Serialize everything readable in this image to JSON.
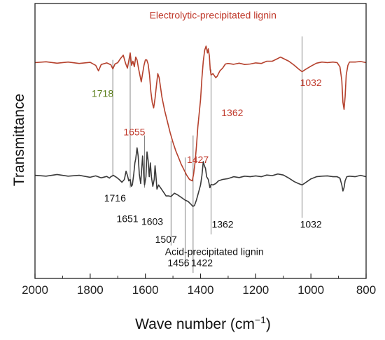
{
  "chart_data": {
    "type": "line",
    "xlabel": "Wave number (cm",
    "xlabel_sup": "−1",
    "xlabel_close": ")",
    "ylabel": "Transmittance",
    "xlim": [
      2000,
      800
    ],
    "x_reversed": true,
    "x_ticks": [
      2000,
      1800,
      1600,
      1400,
      1200,
      1000,
      800
    ],
    "y_ticks_shown": false,
    "grid": false,
    "series": [
      {
        "name": "Electrolytic-precipitated lignin",
        "color": "#b5412d",
        "label_color": "#c0392b",
        "points": [
          [
            2000,
            0.785
          ],
          [
            1960,
            0.788
          ],
          [
            1920,
            0.783
          ],
          [
            1880,
            0.787
          ],
          [
            1840,
            0.782
          ],
          [
            1800,
            0.786
          ],
          [
            1780,
            0.775
          ],
          [
            1770,
            0.755
          ],
          [
            1760,
            0.778
          ],
          [
            1740,
            0.784
          ],
          [
            1725,
            0.777
          ],
          [
            1718,
            0.762
          ],
          [
            1710,
            0.78
          ],
          [
            1700,
            0.785
          ],
          [
            1690,
            0.8
          ],
          [
            1680,
            0.812
          ],
          [
            1672,
            0.783
          ],
          [
            1665,
            0.765
          ],
          [
            1660,
            0.792
          ],
          [
            1655,
            0.82
          ],
          [
            1650,
            0.775
          ],
          [
            1645,
            0.79
          ],
          [
            1640,
            0.77
          ],
          [
            1635,
            0.805
          ],
          [
            1630,
            0.795
          ],
          [
            1625,
            0.765
          ],
          [
            1620,
            0.74
          ],
          [
            1615,
            0.715
          ],
          [
            1610,
            0.745
          ],
          [
            1605,
            0.775
          ],
          [
            1600,
            0.795
          ],
          [
            1595,
            0.795
          ],
          [
            1590,
            0.78
          ],
          [
            1585,
            0.74
          ],
          [
            1580,
            0.68
          ],
          [
            1575,
            0.64
          ],
          [
            1570,
            0.62
          ],
          [
            1565,
            0.655
          ],
          [
            1560,
            0.7
          ],
          [
            1555,
            0.745
          ],
          [
            1550,
            0.73
          ],
          [
            1540,
            0.66
          ],
          [
            1530,
            0.61
          ],
          [
            1520,
            0.57
          ],
          [
            1510,
            0.53
          ],
          [
            1500,
            0.495
          ],
          [
            1490,
            0.465
          ],
          [
            1480,
            0.44
          ],
          [
            1470,
            0.415
          ],
          [
            1460,
            0.395
          ],
          [
            1450,
            0.375
          ],
          [
            1440,
            0.36
          ],
          [
            1430,
            0.355
          ],
          [
            1425,
            0.38
          ],
          [
            1420,
            0.42
          ],
          [
            1415,
            0.48
          ],
          [
            1410,
            0.55
          ],
          [
            1400,
            0.65
          ],
          [
            1395,
            0.73
          ],
          [
            1390,
            0.79
          ],
          [
            1385,
            0.83
          ],
          [
            1380,
            0.845
          ],
          [
            1375,
            0.82
          ],
          [
            1372,
            0.835
          ],
          [
            1368,
            0.81
          ],
          [
            1365,
            0.76
          ],
          [
            1362,
            0.74
          ],
          [
            1355,
            0.745
          ],
          [
            1345,
            0.73
          ],
          [
            1340,
            0.735
          ],
          [
            1330,
            0.755
          ],
          [
            1320,
            0.765
          ],
          [
            1310,
            0.78
          ],
          [
            1300,
            0.782
          ],
          [
            1280,
            0.779
          ],
          [
            1260,
            0.783
          ],
          [
            1240,
            0.778
          ],
          [
            1220,
            0.78
          ],
          [
            1200,
            0.784
          ],
          [
            1180,
            0.782
          ],
          [
            1160,
            0.79
          ],
          [
            1140,
            0.79
          ],
          [
            1120,
            0.8
          ],
          [
            1110,
            0.805
          ],
          [
            1100,
            0.8
          ],
          [
            1080,
            0.79
          ],
          [
            1060,
            0.775
          ],
          [
            1045,
            0.762
          ],
          [
            1032,
            0.752
          ],
          [
            1020,
            0.76
          ],
          [
            1000,
            0.772
          ],
          [
            980,
            0.783
          ],
          [
            960,
            0.787
          ],
          [
            940,
            0.785
          ],
          [
            920,
            0.787
          ],
          [
            905,
            0.785
          ],
          [
            895,
            0.77
          ],
          [
            888,
            0.72
          ],
          [
            884,
            0.64
          ],
          [
            880,
            0.615
          ],
          [
            876,
            0.66
          ],
          [
            872,
            0.74
          ],
          [
            866,
            0.775
          ],
          [
            860,
            0.787
          ],
          [
            840,
            0.787
          ],
          [
            820,
            0.789
          ],
          [
            800,
            0.785
          ]
        ]
      },
      {
        "name": "Acid-precipitated lignin",
        "color": "#3a3a3a",
        "label_color": "#111111",
        "points": [
          [
            2000,
            0.375
          ],
          [
            1960,
            0.372
          ],
          [
            1920,
            0.378
          ],
          [
            1880,
            0.372
          ],
          [
            1840,
            0.375
          ],
          [
            1800,
            0.368
          ],
          [
            1780,
            0.373
          ],
          [
            1760,
            0.366
          ],
          [
            1740,
            0.371
          ],
          [
            1730,
            0.365
          ],
          [
            1725,
            0.37
          ],
          [
            1716,
            0.375
          ],
          [
            1705,
            0.368
          ],
          [
            1695,
            0.36
          ],
          [
            1685,
            0.35
          ],
          [
            1676,
            0.36
          ],
          [
            1670,
            0.39
          ],
          [
            1665,
            0.375
          ],
          [
            1660,
            0.355
          ],
          [
            1655,
            0.36
          ],
          [
            1651,
            0.335
          ],
          [
            1647,
            0.34
          ],
          [
            1642,
            0.38
          ],
          [
            1638,
            0.42
          ],
          [
            1635,
            0.435
          ],
          [
            1630,
            0.475
          ],
          [
            1626,
            0.445
          ],
          [
            1622,
            0.38
          ],
          [
            1617,
            0.345
          ],
          [
            1613,
            0.4
          ],
          [
            1610,
            0.445
          ],
          [
            1605,
            0.365
          ],
          [
            1603,
            0.34
          ],
          [
            1598,
            0.37
          ],
          [
            1594,
            0.46
          ],
          [
            1590,
            0.43
          ],
          [
            1586,
            0.37
          ],
          [
            1582,
            0.42
          ],
          [
            1578,
            0.37
          ],
          [
            1573,
            0.335
          ],
          [
            1568,
            0.36
          ],
          [
            1565,
            0.41
          ],
          [
            1562,
            0.38
          ],
          [
            1558,
            0.325
          ],
          [
            1552,
            0.34
          ],
          [
            1545,
            0.33
          ],
          [
            1535,
            0.315
          ],
          [
            1525,
            0.3
          ],
          [
            1515,
            0.3
          ],
          [
            1507,
            0.298
          ],
          [
            1495,
            0.31
          ],
          [
            1485,
            0.305
          ],
          [
            1470,
            0.295
          ],
          [
            1456,
            0.285
          ],
          [
            1445,
            0.28
          ],
          [
            1435,
            0.27
          ],
          [
            1428,
            0.262
          ],
          [
            1422,
            0.265
          ],
          [
            1415,
            0.285
          ],
          [
            1408,
            0.31
          ],
          [
            1400,
            0.34
          ],
          [
            1395,
            0.375
          ],
          [
            1390,
            0.425
          ],
          [
            1386,
            0.41
          ],
          [
            1382,
            0.4
          ],
          [
            1378,
            0.37
          ],
          [
            1372,
            0.36
          ],
          [
            1366,
            0.33
          ],
          [
            1362,
            0.342
          ],
          [
            1355,
            0.34
          ],
          [
            1345,
            0.345
          ],
          [
            1335,
            0.355
          ],
          [
            1320,
            0.36
          ],
          [
            1300,
            0.363
          ],
          [
            1280,
            0.37
          ],
          [
            1260,
            0.367
          ],
          [
            1240,
            0.372
          ],
          [
            1220,
            0.37
          ],
          [
            1200,
            0.373
          ],
          [
            1180,
            0.37
          ],
          [
            1160,
            0.376
          ],
          [
            1140,
            0.374
          ],
          [
            1120,
            0.38
          ],
          [
            1100,
            0.376
          ],
          [
            1080,
            0.365
          ],
          [
            1060,
            0.352
          ],
          [
            1045,
            0.345
          ],
          [
            1032,
            0.34
          ],
          [
            1020,
            0.348
          ],
          [
            1000,
            0.362
          ],
          [
            980,
            0.37
          ],
          [
            960,
            0.372
          ],
          [
            940,
            0.373
          ],
          [
            920,
            0.37
          ],
          [
            905,
            0.37
          ],
          [
            895,
            0.365
          ],
          [
            888,
            0.34
          ],
          [
            884,
            0.318
          ],
          [
            880,
            0.33
          ],
          [
            876,
            0.355
          ],
          [
            870,
            0.37
          ],
          [
            860,
            0.372
          ],
          [
            840,
            0.37
          ],
          [
            820,
            0.375
          ],
          [
            800,
            0.37
          ]
        ]
      }
    ],
    "ref_lines": [
      {
        "x": 1718,
        "y_from": 0.37,
        "y_to": 0.795
      },
      {
        "x": 1655,
        "y_from": 0.33,
        "y_to": 0.81
      },
      {
        "x": 1603,
        "y_from": 0.33,
        "y_to": 0.52
      },
      {
        "x": 1507,
        "y_from": 0.12,
        "y_to": 0.5
      },
      {
        "x": 1456,
        "y_from": 0.04,
        "y_to": 0.44
      },
      {
        "x": 1427,
        "y_from": 0.02,
        "y_to": 0.52
      },
      {
        "x": 1362,
        "y_from": 0.16,
        "y_to": 0.76
      },
      {
        "x": 1032,
        "y_from": 0.22,
        "y_to": 0.88
      }
    ],
    "annotations": [
      {
        "text": "1718",
        "x": 1755,
        "y": 0.66,
        "series": 0,
        "color": "#5a7d1a"
      },
      {
        "text": "1655",
        "x": 1640,
        "y": 0.52,
        "series": 0
      },
      {
        "text": "1362",
        "x": 1285,
        "y": 0.59,
        "series": 0
      },
      {
        "text": "1427",
        "x": 1410,
        "y": 0.42,
        "series": 0
      },
      {
        "text": "1032",
        "x": 1000,
        "y": 0.7,
        "series": 0
      },
      {
        "text": "1716",
        "x": 1710,
        "y": 0.28,
        "series": 1
      },
      {
        "text": "1651",
        "x": 1665,
        "y": 0.205,
        "series": 1
      },
      {
        "text": "1603",
        "x": 1575,
        "y": 0.195,
        "series": 1
      },
      {
        "text": "1507",
        "x": 1525,
        "y": 0.13,
        "series": 1
      },
      {
        "text": "1456",
        "x": 1480,
        "y": 0.045,
        "series": 1
      },
      {
        "text": "1422",
        "x": 1395,
        "y": 0.045,
        "series": 1
      },
      {
        "text": "1362",
        "x": 1320,
        "y": 0.185,
        "series": 1
      },
      {
        "text": "1032",
        "x": 1000,
        "y": 0.185,
        "series": 1
      }
    ]
  }
}
